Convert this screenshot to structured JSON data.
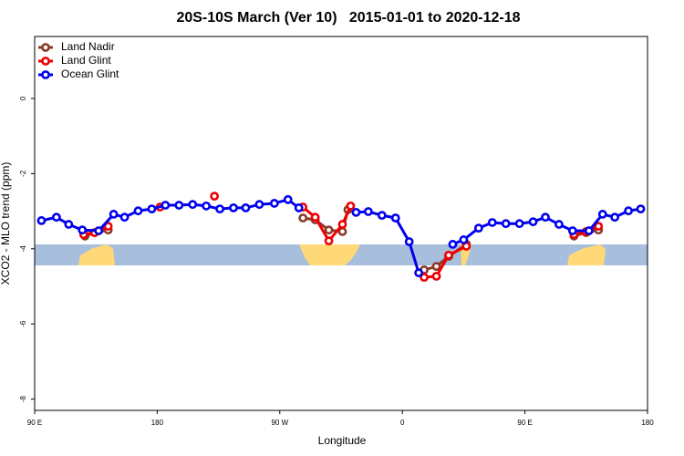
{
  "chart_data": {
    "type": "line",
    "title": "20S-10S March (Ver 10)   2015-01-01 to 2020-12-18",
    "xlabel": "Longitude",
    "ylabel": "XCO2 - MLO trend (ppm)",
    "xlim": [
      90,
      540
    ],
    "xticks": [
      {
        "value": 90,
        "label": "90 E"
      },
      {
        "value": 180,
        "label": "180"
      },
      {
        "value": 270,
        "label": "90 W"
      },
      {
        "value": 360,
        "label": "0"
      },
      {
        "value": 450,
        "label": "90 E"
      },
      {
        "value": 540,
        "label": "180"
      }
    ],
    "ylim": [
      -8.3,
      1.65
    ],
    "yticks": [
      0,
      -2,
      -4,
      -6,
      -8
    ],
    "legend": "top-left",
    "series": [
      {
        "name": "Land Nadir",
        "color": "#8b3a2a",
        "x": [
          127,
          134,
          144,
          null,
          287,
          296,
          306,
          316,
          320,
          null,
          376,
          385,
          394,
          407,
          null,
          486,
          495,
          504
        ],
        "values": [
          -3.66,
          -3.57,
          -3.5,
          null,
          -3.18,
          -3.23,
          -3.5,
          -3.54,
          -2.96,
          null,
          -4.56,
          -4.47,
          -4.2,
          -3.88,
          null,
          -3.66,
          -3.57,
          -3.5
        ]
      },
      {
        "name": "Land Glint",
        "color": "#ee0000",
        "x": [
          126,
          134,
          144,
          null,
          182,
          null,
          222,
          null,
          287,
          296,
          306,
          316,
          322,
          null,
          376,
          385,
          394,
          407,
          null,
          486,
          495,
          504
        ],
        "values": [
          -3.62,
          -3.57,
          -3.4,
          null,
          -2.89,
          null,
          -2.6,
          null,
          -2.89,
          -3.16,
          -3.79,
          -3.35,
          -2.86,
          null,
          -4.76,
          -4.73,
          -4.17,
          -3.93,
          null,
          -3.62,
          -3.54,
          -3.4
        ]
      },
      {
        "name": "Ocean Glint",
        "color": "#0000ee",
        "x": [
          95,
          106,
          115,
          125,
          137,
          148,
          156,
          166,
          176,
          186,
          196,
          206,
          216,
          226,
          236,
          245,
          255,
          266,
          276,
          284,
          null,
          326,
          335,
          345,
          355,
          365,
          372,
          null,
          397,
          405,
          416,
          426,
          436,
          446,
          456,
          465,
          475,
          485,
          497,
          507,
          516,
          526,
          535
        ],
        "values": [
          -3.25,
          -3.16,
          -3.35,
          -3.5,
          -3.52,
          -3.08,
          -3.16,
          -2.99,
          -2.94,
          -2.84,
          -2.84,
          -2.82,
          -2.86,
          -2.94,
          -2.91,
          -2.91,
          -2.82,
          -2.79,
          -2.69,
          -2.91,
          null,
          -3.03,
          -3.01,
          -3.11,
          -3.18,
          -3.81,
          -4.64,
          null,
          -3.88,
          -3.76,
          -3.45,
          -3.3,
          -3.33,
          -3.33,
          -3.28,
          -3.16,
          -3.35,
          -3.52,
          -3.52,
          -3.08,
          -3.16,
          -2.99,
          -2.94
        ]
      }
    ]
  }
}
